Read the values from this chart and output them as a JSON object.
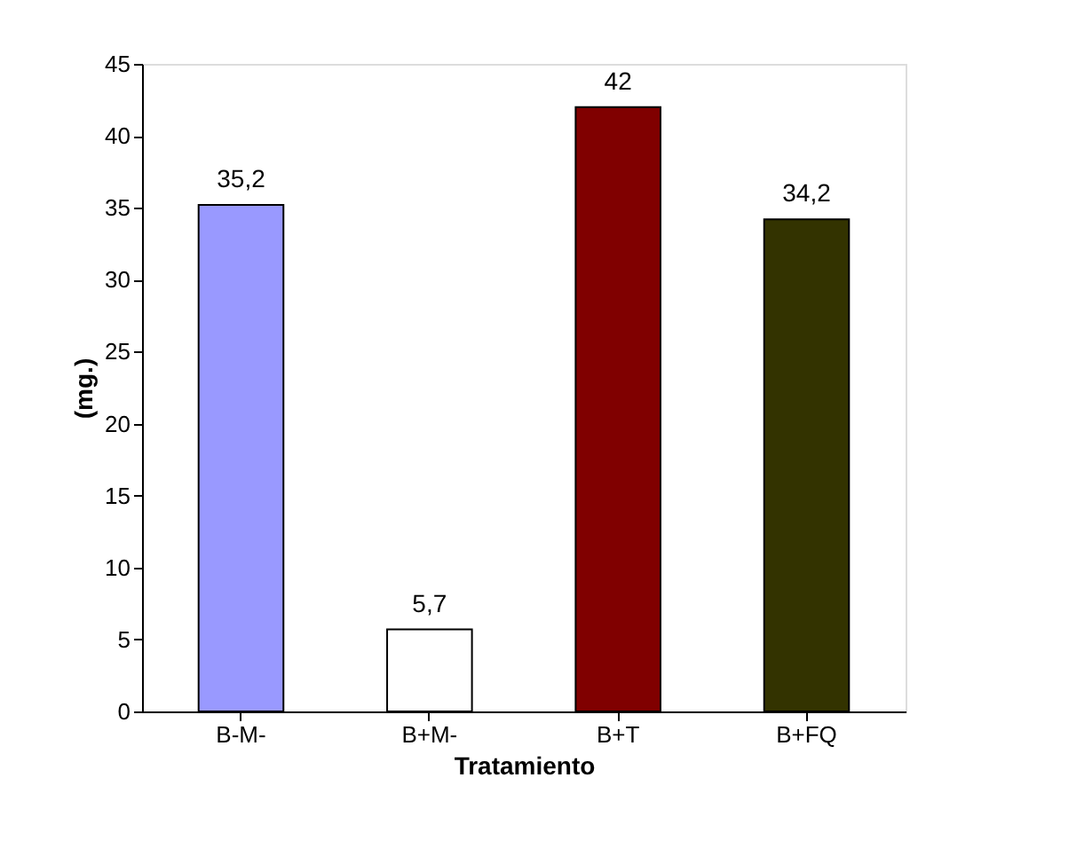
{
  "chart_data": {
    "type": "bar",
    "xlabel": "Tratamiento",
    "ylabel": "(mg.)",
    "categories": [
      "B-M-",
      "B+M-",
      "B+T",
      "B+FQ"
    ],
    "values": [
      35.2,
      5.7,
      42,
      34.2
    ],
    "colors": [
      "#9999ff",
      "#ffffff",
      "#800000",
      "#333300"
    ],
    "value_labels": [
      "35,2",
      "5,7",
      "42",
      "34,2"
    ],
    "ylim": [
      0,
      45
    ],
    "yticks": [
      0,
      5,
      10,
      15,
      20,
      25,
      30,
      35,
      40,
      45
    ],
    "grid": false
  }
}
